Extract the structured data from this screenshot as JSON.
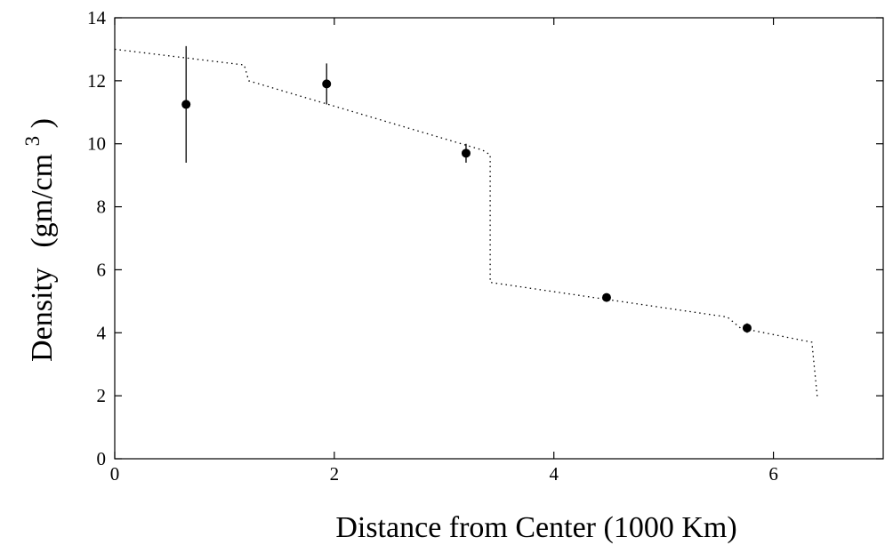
{
  "chart_data": {
    "type": "scatter",
    "title": "",
    "xlabel": "Distance from Center (1000 Km)",
    "ylabel_main": "Density",
    "ylabel_unit_prefix": "(gm/cm",
    "ylabel_unit_exp": "3",
    "ylabel_unit_suffix": ")",
    "xlim": [
      0,
      7
    ],
    "ylim": [
      0,
      14
    ],
    "xticks": [
      0,
      2,
      4,
      6
    ],
    "yticks": [
      0,
      2,
      4,
      6,
      8,
      10,
      12,
      14
    ],
    "xtick_labels": [
      "0",
      "2",
      "4",
      "6"
    ],
    "ytick_labels": [
      "0",
      "2",
      "4",
      "6",
      "8",
      "10",
      "12",
      "14"
    ],
    "grid": false,
    "series": [
      {
        "kind": "points-with-errorbars",
        "x": [
          0.65,
          1.93,
          3.2,
          4.48,
          5.76
        ],
        "y": [
          11.25,
          11.9,
          9.7,
          5.12,
          4.15
        ],
        "err_low": [
          9.4,
          11.25,
          9.4,
          5.0,
          4.0
        ],
        "err_high": [
          13.1,
          12.55,
          10.0,
          5.25,
          4.3
        ]
      },
      {
        "kind": "model-line",
        "style": "dotted",
        "x": [
          0.0,
          1.18,
          1.22,
          3.35,
          3.42,
          3.42,
          5.58,
          5.7,
          6.35,
          6.4
        ],
        "y": [
          13.0,
          12.5,
          12.0,
          9.8,
          9.65,
          5.6,
          4.5,
          4.15,
          3.7,
          1.95
        ]
      }
    ]
  }
}
